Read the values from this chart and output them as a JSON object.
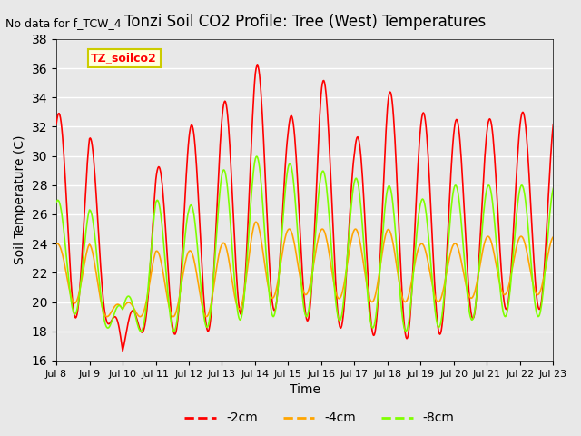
{
  "title": "Tonzi Soil CO2 Profile: Tree (West) Temperatures",
  "no_data_text": "No data for f_TCW_4",
  "xlabel": "Time",
  "ylabel": "Soil Temperature (C)",
  "ylim": [
    16,
    38
  ],
  "yticks": [
    16,
    18,
    20,
    22,
    24,
    26,
    28,
    30,
    32,
    34,
    36,
    38
  ],
  "background_color": "#e8e8e8",
  "plot_bg_color": "#e8e8e8",
  "grid_color": "#ffffff",
  "colors": {
    "2cm": "#ff0000",
    "4cm": "#ffa500",
    "8cm": "#7fff00"
  },
  "legend_labels": [
    "-2cm",
    "-4cm",
    "-8cm"
  ],
  "legend_colors": [
    "#ff0000",
    "#ffa500",
    "#7fff00"
  ],
  "inset_label": "TZ_soilco2",
  "xtick_labels": [
    "Jul 8",
    "Jul 9",
    "Jul 10",
    "Jul 11",
    "Jul 12",
    "Jul 13",
    "Jul 14",
    "Jul 15",
    "Jul 16",
    "Jul 17",
    "Jul 18",
    "Jul 19",
    "Jul 20",
    "Jul 21",
    "Jul 22",
    "Jul 23"
  ],
  "n_days": 15,
  "start_day": 8,
  "day_peaks_2cm": [
    33,
    32,
    16.5,
    29,
    32,
    33.5,
    36.5,
    32.5,
    35.5,
    31,
    34.5,
    33,
    32.5,
    32.5,
    33
  ],
  "day_mins_2cm": [
    19.5,
    18.5,
    18.5,
    17.5,
    18,
    18,
    20.0,
    19.0,
    18.5,
    18,
    17.5,
    17.5,
    18,
    19.5,
    19.5
  ],
  "day_peaks_4cm": [
    24,
    24,
    19.5,
    23.5,
    23.5,
    24,
    25.5,
    25,
    25,
    25,
    25,
    24,
    24,
    24.5,
    24.5
  ],
  "day_mins_4cm": [
    21,
    19,
    19,
    19,
    19,
    19,
    20,
    20.5,
    20.5,
    20,
    20,
    20,
    20,
    20.5,
    20.5
  ],
  "day_peaks_8cm": [
    27,
    26.5,
    19.5,
    27,
    26.5,
    29,
    30,
    29.5,
    29,
    28.5,
    28,
    27,
    28,
    28,
    28
  ],
  "day_mins_8cm": [
    20,
    18.5,
    18,
    18,
    18,
    18.5,
    19,
    19,
    19,
    18.5,
    18,
    18,
    18.5,
    19,
    19
  ]
}
